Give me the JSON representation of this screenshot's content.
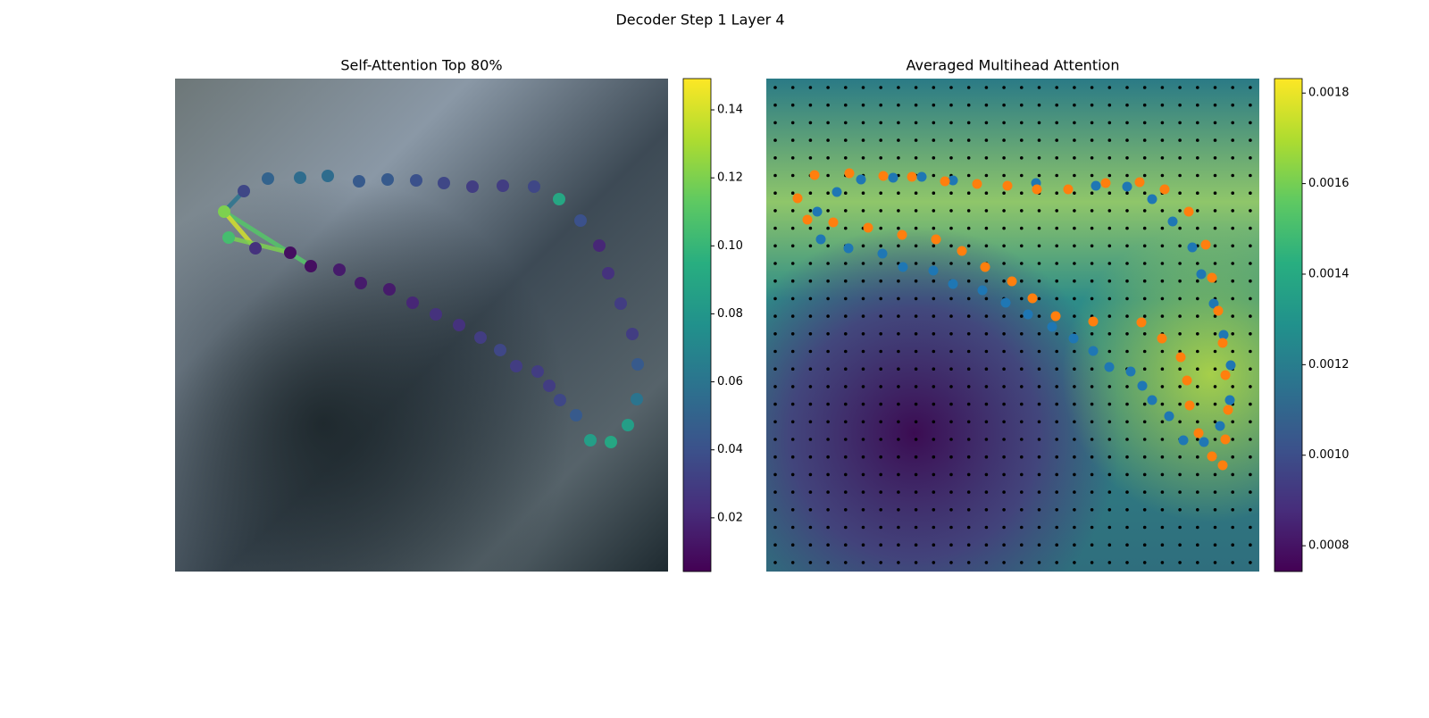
{
  "title": "Decoder Step 1 Layer 4",
  "chart_data": [
    {
      "type": "scatter",
      "title": "Self-Attention Top 80%",
      "xlim": [
        0,
        552
      ],
      "ylim": [
        552,
        0
      ],
      "x": [
        77,
        104,
        140,
        171,
        206,
        238,
        270,
        301,
        333,
        367,
        402,
        430,
        454,
        475,
        485,
        499,
        512,
        518,
        517,
        507,
        488,
        465,
        449,
        431,
        419,
        406,
        382,
        364,
        342,
        318,
        292,
        266,
        240,
        208,
        184,
        152,
        129,
        90,
        60,
        55
      ],
      "y": [
        126,
        112,
        111,
        109,
        115,
        113,
        114,
        117,
        121,
        120,
        121,
        135,
        159,
        187,
        218,
        252,
        286,
        320,
        359,
        388,
        407,
        405,
        377,
        360,
        344,
        328,
        322,
        304,
        290,
        276,
        264,
        251,
        236,
        229,
        214,
        210,
        195,
        190,
        178,
        149
      ],
      "values": [
        0.035,
        0.05,
        0.055,
        0.055,
        0.045,
        0.045,
        0.04,
        0.035,
        0.03,
        0.03,
        0.035,
        0.09,
        0.04,
        0.02,
        0.025,
        0.03,
        0.03,
        0.045,
        0.06,
        0.085,
        0.09,
        0.085,
        0.045,
        0.035,
        0.03,
        0.03,
        0.03,
        0.035,
        0.03,
        0.025,
        0.025,
        0.02,
        0.015,
        0.015,
        0.015,
        0.01,
        0.01,
        0.025,
        0.105,
        0.12
      ],
      "lines": [
        {
          "x": [
            55,
            77
          ],
          "y": [
            149,
            126
          ],
          "value": 0.06
        },
        {
          "x": [
            55,
            152
          ],
          "y": [
            149,
            210
          ],
          "value": 0.11
        },
        {
          "x": [
            55,
            90
          ],
          "y": [
            149,
            190
          ],
          "value": 0.14
        },
        {
          "x": [
            60,
            129
          ],
          "y": [
            178,
            195
          ],
          "value": 0.12
        }
      ],
      "clim": [
        0.0042,
        0.1492
      ],
      "cticks": [
        0.02,
        0.04,
        0.06,
        0.08,
        {
          "value": 0.1,
          "label": "0.10"
        },
        0.12,
        0.14
      ]
    },
    {
      "type": "scatter",
      "title": "Averaged Multihead Attention",
      "xlim": [
        0,
        552
      ],
      "ylim": [
        552,
        0
      ],
      "series": [
        {
          "color": "#1f77b4",
          "x": [
            57,
            79,
            106,
            142,
            174,
            209,
            302,
            369,
            404,
            432,
            455,
            477,
            487,
            501,
            512,
            520,
            519,
            508,
            490,
            467,
            451,
            432,
            421,
            408,
            384,
            366,
            344,
            320,
            293,
            268,
            242,
            209,
            187,
            153,
            130,
            92,
            61
          ],
          "y": [
            149,
            127,
            113,
            111,
            110,
            114,
            117,
            120,
            121,
            135,
            160,
            189,
            219,
            252,
            287,
            321,
            360,
            389,
            407,
            405,
            378,
            360,
            344,
            328,
            323,
            305,
            291,
            278,
            264,
            251,
            237,
            230,
            215,
            211,
            196,
            190,
            180
          ]
        },
        {
          "color": "#ff7f0e",
          "x": [
            35,
            54,
            93,
            131,
            163,
            200,
            236,
            270,
            303,
            338,
            380,
            418,
            446,
            473,
            492,
            499,
            506,
            511,
            514,
            517,
            514,
            511,
            499,
            484,
            474,
            471,
            464,
            443,
            420,
            366,
            324,
            298,
            275,
            245,
            219,
            190,
            152,
            114,
            75,
            46
          ],
          "y": [
            134,
            108,
            106,
            109,
            110,
            115,
            118,
            120,
            124,
            124,
            117,
            116,
            124,
            149,
            186,
            223,
            260,
            296,
            332,
            371,
            404,
            433,
            423,
            397,
            366,
            338,
            312,
            291,
            273,
            272,
            266,
            246,
            227,
            211,
            193,
            180,
            175,
            167,
            161,
            158
          ]
        }
      ],
      "clim": [
        0.000743,
        0.001832
      ],
      "cticks": [
        0.0008,
        {
          "value": 0.001,
          "label": "0.0010"
        },
        0.0012,
        0.0014,
        0.0016,
        0.0018
      ]
    }
  ]
}
